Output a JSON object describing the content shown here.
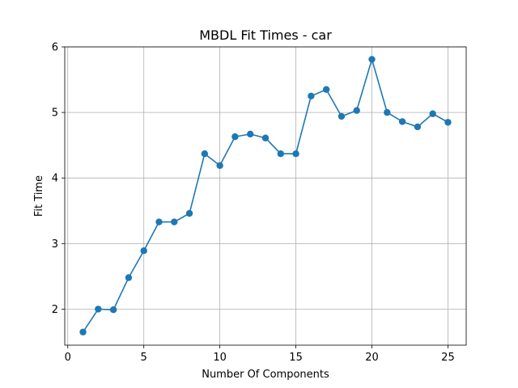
{
  "chart_data": {
    "type": "line",
    "title": "MBDL Fit Times - car",
    "xlabel": "Number Of Components",
    "ylabel": "Fit Time",
    "x": [
      1,
      2,
      3,
      4,
      5,
      6,
      7,
      8,
      9,
      10,
      11,
      12,
      13,
      14,
      15,
      16,
      17,
      18,
      19,
      20,
      21,
      22,
      23,
      24,
      25
    ],
    "series": [
      {
        "values": [
          1.65,
          2.0,
          1.99,
          2.48,
          2.89,
          3.33,
          3.33,
          3.46,
          4.37,
          4.19,
          4.63,
          4.67,
          4.61,
          4.37,
          4.37,
          5.25,
          5.35,
          4.94,
          5.03,
          5.81,
          5.0,
          4.86,
          4.78,
          4.98,
          4.85
        ],
        "color": "#1f77b4",
        "marker": "circle"
      }
    ],
    "xlim": [
      -0.2,
      26.2
    ],
    "ylim": [
      1.45,
      6.0
    ],
    "xticks": [
      0,
      5,
      10,
      15,
      20,
      25
    ],
    "yticks": [
      2,
      3,
      4,
      5,
      6
    ],
    "xtick_labels": [
      "0",
      "5",
      "10",
      "15",
      "20",
      "25"
    ],
    "ytick_labels": [
      "2",
      "3",
      "4",
      "5",
      "6"
    ],
    "grid": true,
    "legend": "none"
  }
}
